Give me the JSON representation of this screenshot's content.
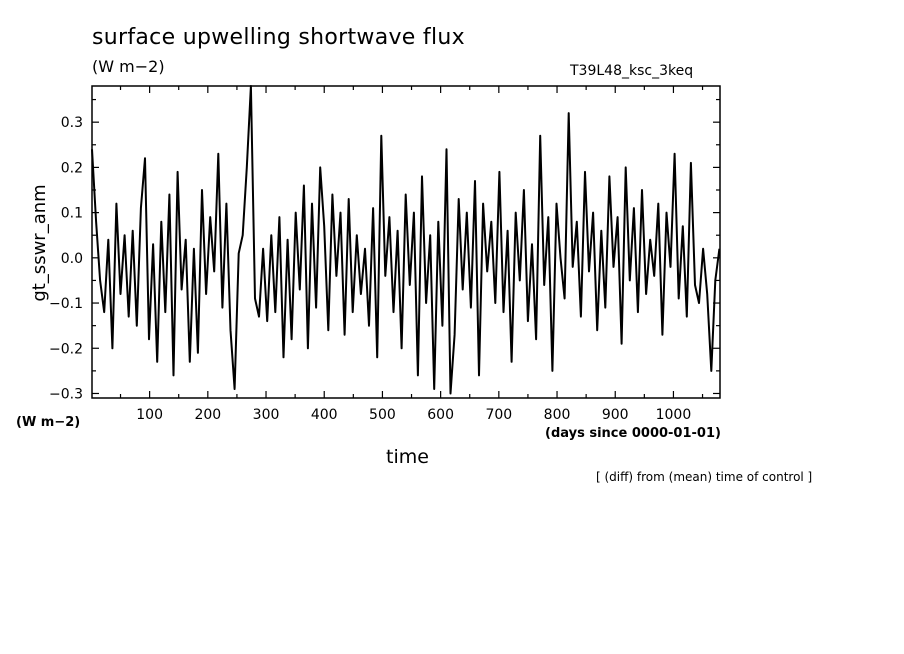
{
  "header": {
    "title": "surface upwelling shortwave flux",
    "units": "(W m−2)",
    "run_id": "T39L48_ksc_3keq"
  },
  "axes": {
    "ylabel": "gt_sswr_anm",
    "y_units": "(W m−2)",
    "xlabel": "time",
    "x_units": "(days since 0000-01-01)"
  },
  "footnote": "[ (diff) from (mean) time of control ]",
  "chart_data": {
    "type": "line",
    "title": "surface upwelling shortwave flux",
    "xlabel": "time",
    "ylabel": "gt_sswr_anm",
    "xlim": [
      1,
      1080
    ],
    "ylim": [
      -0.31,
      0.38
    ],
    "x_ticks": [
      100,
      200,
      300,
      400,
      500,
      600,
      700,
      800,
      900,
      1000
    ],
    "y_ticks": [
      -0.3,
      -0.2,
      -0.1,
      0.0,
      0.1,
      0.2,
      0.3
    ],
    "y_tick_labels": [
      "−0.3",
      "−0.2",
      "−0.1",
      "0.0",
      "0.1",
      "0.2",
      "0.3"
    ],
    "grid": false,
    "line_color": "#000000",
    "series": [
      {
        "x": [
          1,
          8,
          15,
          22,
          29,
          36,
          43,
          50,
          57,
          64,
          71,
          78,
          85,
          92,
          99,
          106,
          113,
          120,
          127,
          134,
          141,
          148,
          155,
          162,
          169,
          176,
          183,
          190,
          197,
          204,
          211,
          218,
          225,
          232,
          239,
          246,
          253,
          260,
          267,
          274,
          281,
          288,
          295,
          302,
          309,
          316,
          323,
          330,
          337,
          344,
          351,
          358,
          365,
          372,
          379,
          386,
          393,
          400,
          407,
          414,
          421,
          428,
          435,
          442,
          449,
          456,
          463,
          470,
          477,
          484,
          491,
          498,
          505,
          512,
          519,
          526,
          533,
          540,
          547,
          554,
          561,
          568,
          575,
          582,
          589,
          596,
          603,
          610,
          617,
          624,
          631,
          638,
          645,
          652,
          659,
          666,
          673,
          680,
          687,
          694,
          701,
          708,
          715,
          722,
          729,
          736,
          743,
          750,
          757,
          764,
          771,
          778,
          785,
          792,
          799,
          806,
          813,
          820,
          827,
          834,
          841,
          848,
          855,
          862,
          869,
          876,
          883,
          890,
          897,
          904,
          911,
          918,
          925,
          932,
          939,
          946,
          953,
          960,
          967,
          974,
          981,
          988,
          995,
          1002,
          1009,
          1016,
          1023,
          1030,
          1037,
          1044,
          1051,
          1058,
          1065,
          1072,
          1079
        ],
        "values": [
          0.24,
          0.08,
          -0.05,
          -0.12,
          0.04,
          -0.2,
          0.12,
          -0.08,
          0.05,
          -0.13,
          0.06,
          -0.15,
          0.11,
          0.22,
          -0.18,
          0.03,
          -0.23,
          0.08,
          -0.12,
          0.14,
          -0.26,
          0.19,
          -0.07,
          0.04,
          -0.23,
          0.02,
          -0.21,
          0.15,
          -0.08,
          0.09,
          -0.03,
          0.23,
          -0.11,
          0.12,
          -0.16,
          -0.29,
          0.01,
          0.05,
          0.2,
          0.38,
          -0.09,
          -0.13,
          0.02,
          -0.14,
          0.05,
          -0.12,
          0.09,
          -0.22,
          0.04,
          -0.18,
          0.1,
          -0.07,
          0.16,
          -0.2,
          0.12,
          -0.11,
          0.2,
          0.07,
          -0.16,
          0.14,
          -0.04,
          0.1,
          -0.17,
          0.13,
          -0.12,
          0.05,
          -0.08,
          0.02,
          -0.15,
          0.11,
          -0.22,
          0.27,
          -0.04,
          0.09,
          -0.12,
          0.06,
          -0.2,
          0.14,
          -0.06,
          0.1,
          -0.26,
          0.18,
          -0.1,
          0.05,
          -0.29,
          0.08,
          -0.15,
          0.24,
          -0.3,
          -0.17,
          0.13,
          -0.07,
          0.1,
          -0.11,
          0.17,
          -0.26,
          0.12,
          -0.03,
          0.08,
          -0.1,
          0.19,
          -0.12,
          0.06,
          -0.23,
          0.1,
          -0.05,
          0.15,
          -0.14,
          0.03,
          -0.18,
          0.27,
          -0.06,
          0.09,
          -0.25,
          0.12,
          0.0,
          -0.09,
          0.32,
          -0.02,
          0.08,
          -0.13,
          0.19,
          -0.03,
          0.1,
          -0.16,
          0.06,
          -0.11,
          0.18,
          -0.02,
          0.09,
          -0.19,
          0.2,
          -0.05,
          0.11,
          -0.12,
          0.15,
          -0.08,
          0.04,
          -0.04,
          0.12,
          -0.17,
          0.1,
          -0.02,
          0.23,
          -0.09,
          0.07,
          -0.13,
          0.21,
          -0.06,
          -0.1,
          0.02,
          -0.08,
          -0.25,
          -0.05,
          0.02
        ]
      }
    ]
  }
}
